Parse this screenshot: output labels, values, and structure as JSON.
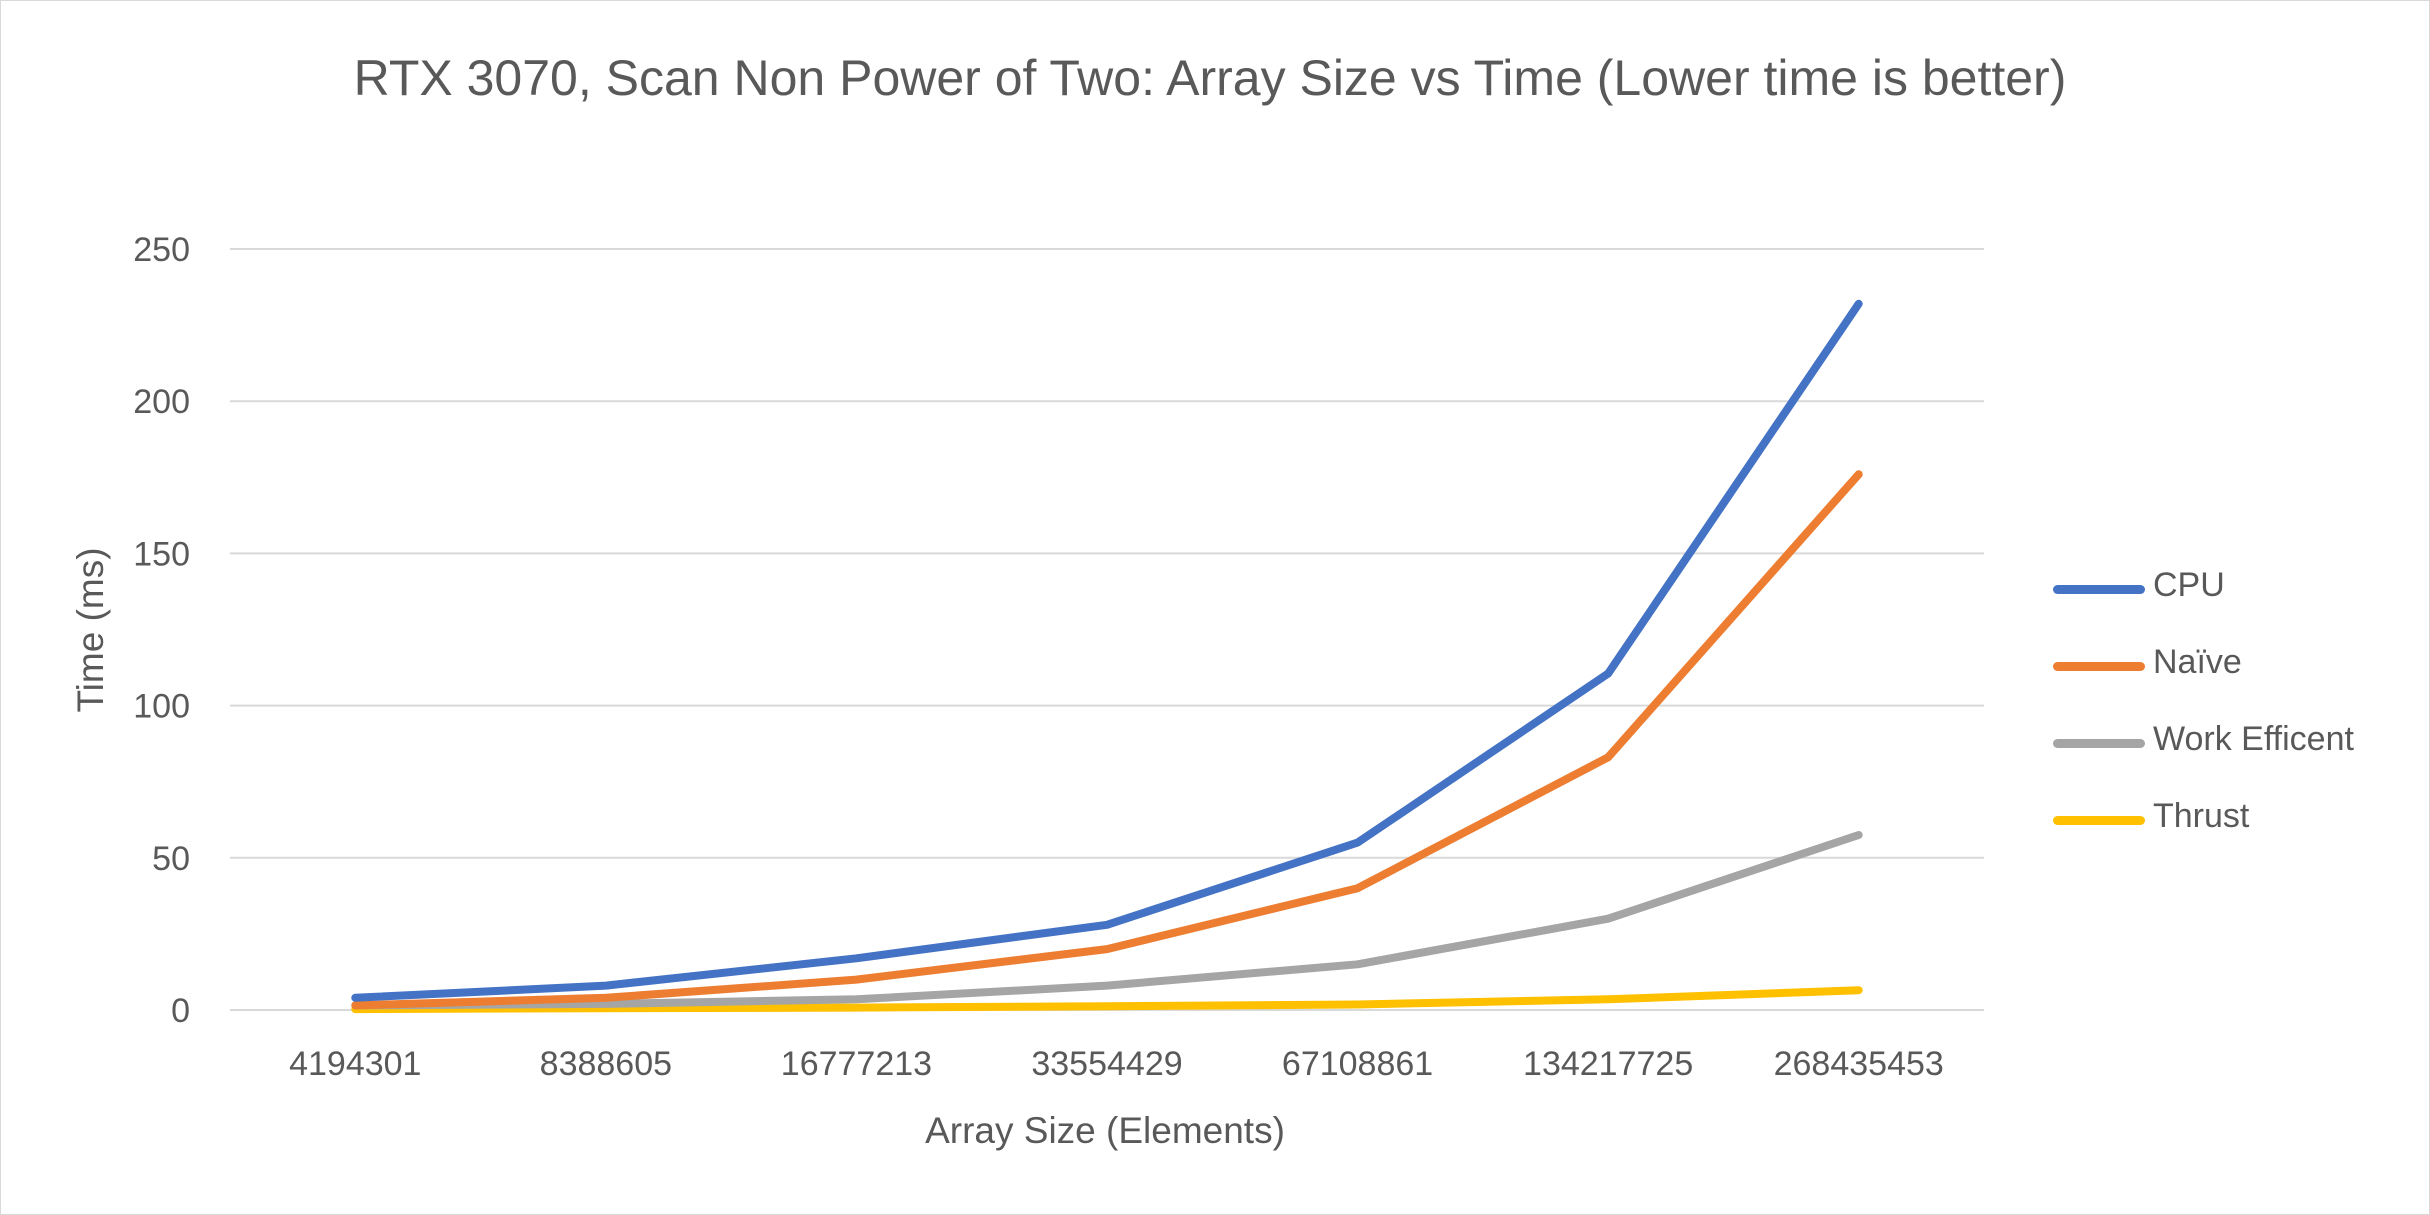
{
  "chart_data": {
    "type": "line",
    "title": "RTX 3070, Scan Non Power of Two: Array Size vs Time (Lower time is better)",
    "xlabel": "Array Size (Elements)",
    "ylabel": "Time (ms)",
    "categories": [
      "4194301",
      "8388605",
      "16777213",
      "33554429",
      "67108861",
      "134217725",
      "268435453"
    ],
    "ylim": [
      0,
      250
    ],
    "yticks": [
      0,
      50,
      100,
      150,
      200,
      250
    ],
    "grid": true,
    "legend_position": "right",
    "series": [
      {
        "name": "CPU",
        "color": "#4472c4",
        "values": [
          4,
          8,
          17,
          28,
          55,
          110.5,
          232
        ]
      },
      {
        "name": "Naïve",
        "color": "#ed7d31",
        "values": [
          1.5,
          4,
          10,
          20,
          40,
          83,
          176
        ]
      },
      {
        "name": "Work Efficent",
        "color": "#a5a5a5",
        "values": [
          1.5,
          2,
          3.5,
          8,
          15,
          30,
          57.5
        ]
      },
      {
        "name": "Thrust",
        "color": "#ffc000",
        "values": [
          0.3,
          0.6,
          0.8,
          1.2,
          1.8,
          3.5,
          6.5
        ]
      }
    ]
  }
}
